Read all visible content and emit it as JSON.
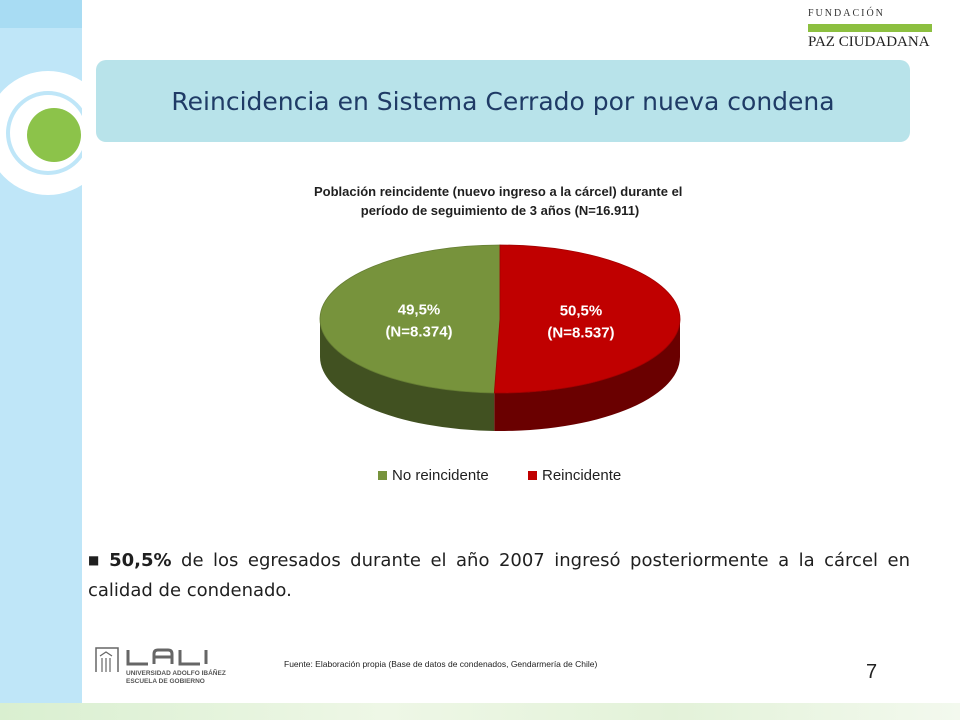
{
  "header": {
    "brand_line1": "FUNDACIÓN",
    "brand_line2": "PAZ CIUDADANA",
    "title": "Reincidencia en Sistema Cerrado por nueva condena"
  },
  "chart_data": {
    "type": "pie",
    "title": "Población reincidente (nuevo ingreso a la cárcel) durante el período de seguimiento de 3 años (N=16.911)",
    "title_lines": [
      "Población reincidente (nuevo ingreso a la cárcel) durante el",
      "período de seguimiento de 3 años (N=16.911)"
    ],
    "categories": [
      "No reincidente",
      "Reincidente"
    ],
    "values": [
      49.5,
      50.5
    ],
    "counts": [
      8374,
      8537
    ],
    "labels": [
      [
        "49,5%",
        "(N=8.374)"
      ],
      [
        "50,5%",
        "(N=8.537)"
      ]
    ],
    "colors": [
      "#77933c",
      "#c00000"
    ],
    "legend_position": "bottom",
    "style": "3d"
  },
  "body": {
    "bullet_strong": "50,5%",
    "bullet_rest": " de los egresados durante el año 2007 ingresó posteriormente a la cárcel en calidad de condenado."
  },
  "footer": {
    "ual_line1": "UNIVERSIDAD ADOLFO IBÁÑEZ",
    "ual_line2": "ESCUELA DE GOBIERNO",
    "source": "Fuente: Elaboración propia (Base de datos de condenados, Gendarmería de Chile)",
    "page_number": "7"
  }
}
